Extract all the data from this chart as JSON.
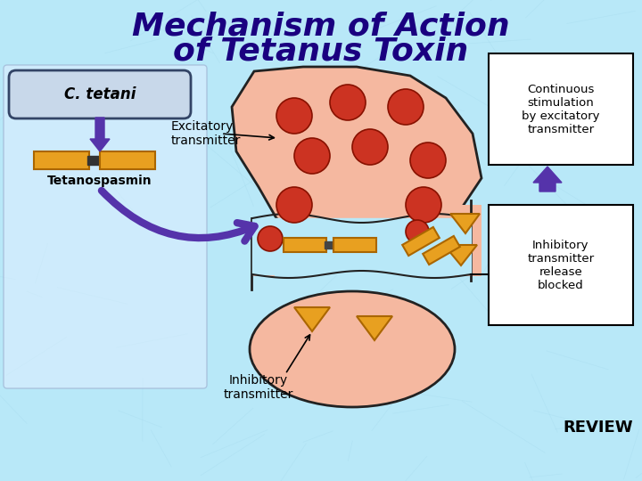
{
  "title_line1": "Mechanism of Action",
  "title_line2": "of Tetanus Toxin",
  "title_color": "#1a0080",
  "title_fontsize": 26,
  "bg_color": "#b8e8f8",
  "review_text": "REVIEW",
  "review_fontsize": 13,
  "neuron_fill": "#f5b8a0",
  "neuron_edge": "#222222",
  "box_fill": "#ddeeff",
  "box_edge": "#445566",
  "orange_color": "#e8a020",
  "red_circle_color": "#cc3322",
  "purple_color": "#5533aa",
  "label_fontsize": 11,
  "small_fontsize": 10,
  "ctetani_box_fill": "#c8d8ea",
  "ctetani_box_edge": "#334466"
}
